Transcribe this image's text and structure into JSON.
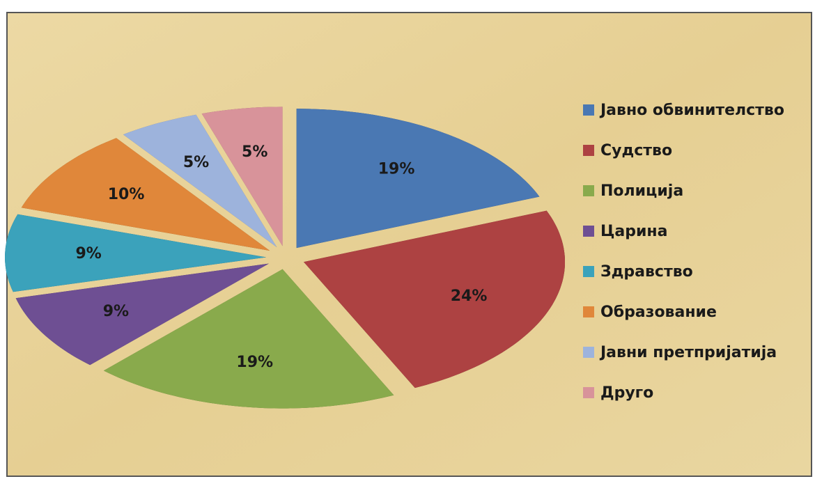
{
  "chart_data": {
    "type": "pie",
    "categories": [
      "Јавно обвинителство",
      "Судство",
      "Полиција",
      "Царина",
      "Здравство",
      "Образование",
      "Јавни претпријатија",
      "Друго"
    ],
    "values": [
      19,
      24,
      19,
      9,
      9,
      10,
      5,
      5
    ],
    "value_labels": [
      "19%",
      "24%",
      "19%",
      "9%",
      "9%",
      "10%",
      "5%",
      "5%"
    ],
    "colors": [
      "#4a78b3",
      "#ad4242",
      "#89aa4c",
      "#6e4f93",
      "#3ba2bb",
      "#e0873a",
      "#9db3dc",
      "#d8939a"
    ],
    "legend": "right"
  }
}
